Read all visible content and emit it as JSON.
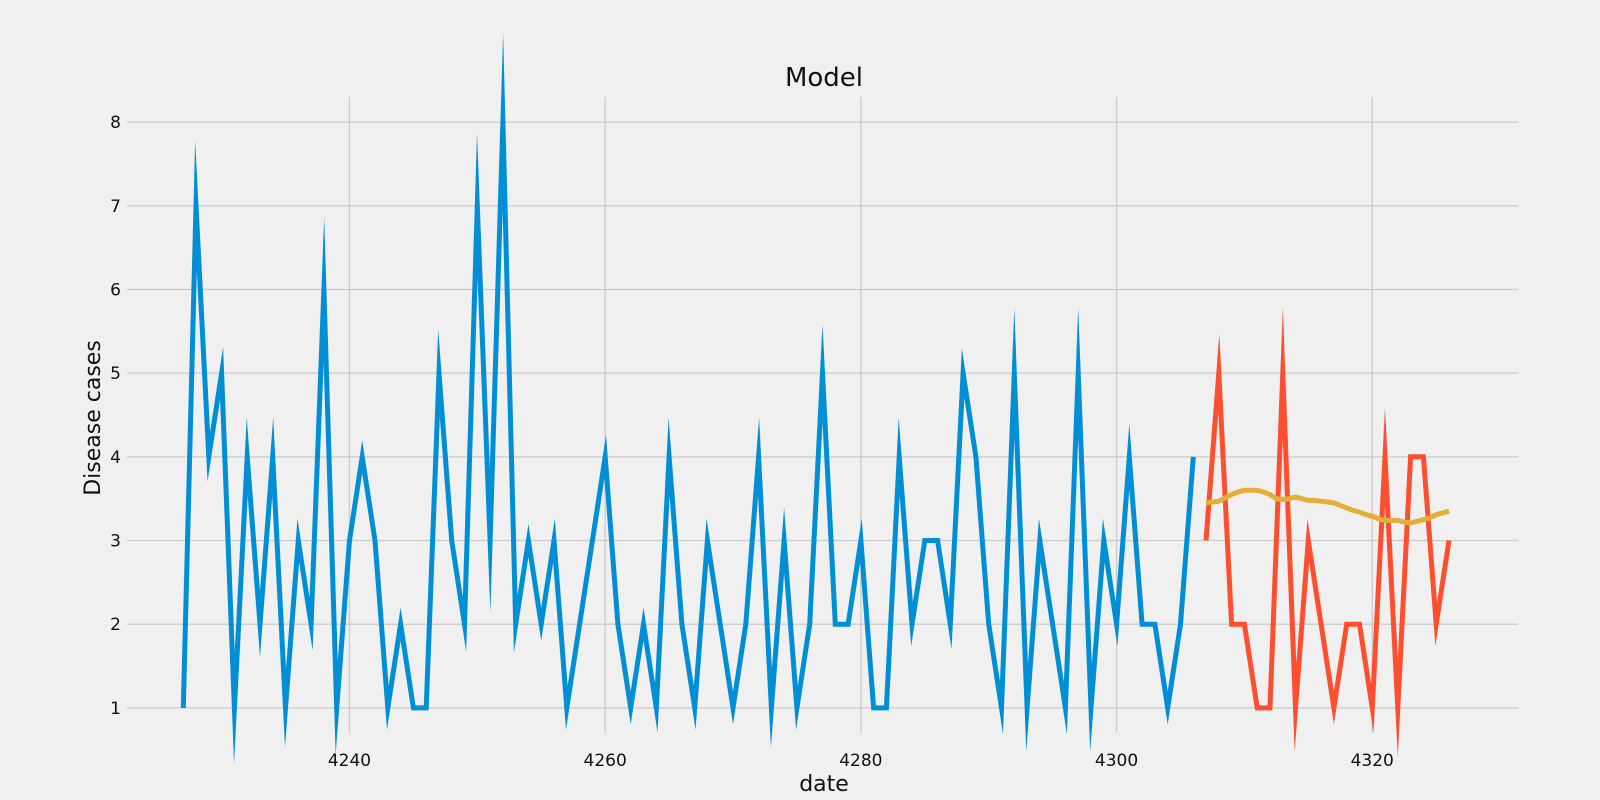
{
  "chart_data": {
    "type": "line",
    "title": "Model",
    "xlabel": "date",
    "ylabel": "Disease cases",
    "xlim": [
      4222.6,
      4331.4
    ],
    "ylim": [
      0.7,
      8.3
    ],
    "xticks": [
      4240,
      4260,
      4280,
      4300,
      4320
    ],
    "yticks": [
      1,
      2,
      3,
      4,
      5,
      6,
      7,
      8
    ],
    "grid": true,
    "colors": {
      "background": "#f0f0f0",
      "grid": "#cbcbcb",
      "train": "#008fd5",
      "valid": "#fc4f30",
      "predictions": "#e5ae38"
    },
    "series": [
      {
        "key": "train",
        "x": [
          4227,
          4228,
          4229,
          4230,
          4231,
          4232,
          4233,
          4234,
          4235,
          4236,
          4237,
          4238,
          4239,
          4240,
          4241,
          4242,
          4243,
          4244,
          4245,
          4246,
          4247,
          4248,
          4249,
          4250,
          4251,
          4252,
          4253,
          4254,
          4255,
          4256,
          4257,
          4258,
          4259,
          4260,
          4261,
          4262,
          4263,
          4264,
          4265,
          4266,
          4267,
          4268,
          4269,
          4270,
          4271,
          4272,
          4273,
          4274,
          4275,
          4276,
          4277,
          4278,
          4279,
          4280,
          4281,
          4282,
          4283,
          4284,
          4285,
          4286,
          4287,
          4288,
          4289,
          4290,
          4291,
          4292,
          4293,
          4294,
          4295,
          4296,
          4297,
          4298,
          4299,
          4300,
          4301,
          4302,
          4303,
          4304,
          4305,
          4306
        ],
        "values": [
          1,
          7,
          4,
          5,
          1,
          4,
          2,
          4,
          1,
          3,
          2,
          6,
          1,
          3,
          4,
          3,
          1,
          2,
          1,
          1,
          5,
          3,
          2,
          7,
          3,
          8,
          2,
          3,
          2,
          3,
          1,
          2,
          3,
          4,
          2,
          1,
          2,
          1,
          4,
          2,
          1,
          3,
          2,
          1,
          2,
          4,
          1,
          3,
          1,
          2,
          5,
          2,
          2,
          3,
          1,
          1,
          4,
          2,
          3,
          3,
          2,
          5,
          4,
          2,
          1,
          5,
          1,
          3,
          2,
          1,
          5,
          1,
          3,
          2,
          4,
          2,
          2,
          1,
          2,
          4
        ]
      },
      {
        "key": "valid",
        "x": [
          4307,
          4308,
          4309,
          4310,
          4311,
          4312,
          4313,
          4314,
          4315,
          4316,
          4317,
          4318,
          4319,
          4320,
          4321,
          4322,
          4323,
          4324,
          4325,
          4326
        ],
        "values": [
          3,
          5,
          2,
          2,
          1,
          1,
          5,
          1,
          3,
          2,
          1,
          2,
          2,
          1,
          4,
          1,
          4,
          4,
          2,
          3
        ]
      },
      {
        "key": "predictions",
        "x": [
          4307,
          4307.5,
          4308,
          4308.5,
          4309,
          4309.5,
          4310,
          4310.5,
          4311,
          4311.5,
          4312,
          4312.5,
          4313,
          4313.5,
          4314,
          4314.5,
          4315,
          4315.5,
          4316,
          4316.5,
          4317,
          4317.5,
          4318,
          4318.5,
          4319,
          4319.5,
          4320,
          4320.5,
          4321,
          4321.5,
          4322,
          4322.5,
          4323,
          4323.5,
          4324,
          4324.5,
          4325,
          4325.5,
          4326
        ],
        "values": [
          3.45,
          3.46,
          3.47,
          3.51,
          3.55,
          3.58,
          3.6,
          3.6,
          3.6,
          3.58,
          3.55,
          3.5,
          3.49,
          3.5,
          3.52,
          3.5,
          3.48,
          3.48,
          3.47,
          3.46,
          3.45,
          3.42,
          3.39,
          3.36,
          3.34,
          3.31,
          3.29,
          3.26,
          3.24,
          3.24,
          3.24,
          3.22,
          3.21,
          3.23,
          3.25,
          3.27,
          3.31,
          3.33,
          3.35
        ]
      }
    ]
  }
}
